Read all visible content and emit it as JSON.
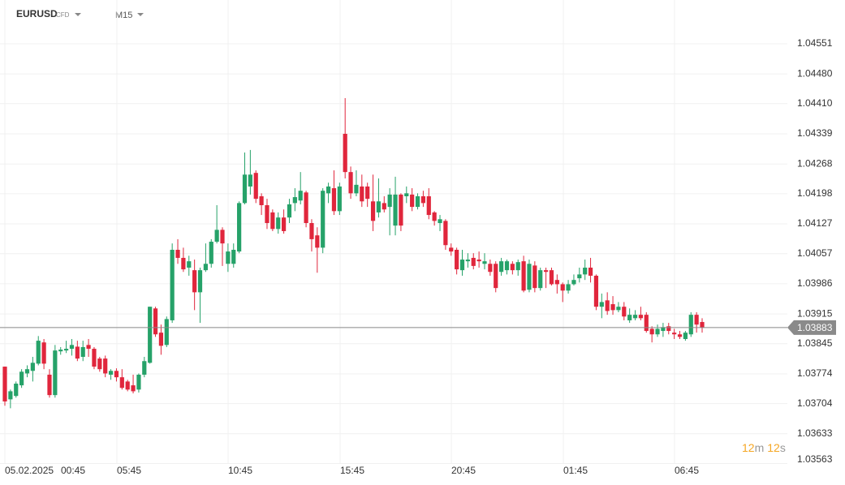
{
  "symbol": "EURUSD",
  "instrument": "CFD",
  "timeframe": "M15",
  "countdown": [
    {
      "number": "12",
      "unit": "m"
    },
    {
      "number": "12",
      "unit": "s"
    }
  ],
  "chart_data": {
    "type": "candlestick",
    "up_color": "#26a269",
    "down_color": "#e0263c",
    "last_price": 1.03883,
    "x_labels": [
      "05.02.2025",
      "00:45",
      "05:45",
      "10:45",
      "15:45",
      "20:45",
      "01:45",
      "06:45"
    ],
    "ylim": [
      1.03562,
      1.04654
    ],
    "yticks": [
      1.04551,
      {
        "value": 1.0448,
        "label": "1.04480"
      },
      {
        "value": 1.0441,
        "label": "1.04410"
      },
      1.04339,
      1.04268,
      1.04198,
      1.04127,
      1.04057,
      1.03986,
      1.03915,
      1.03845,
      1.03774,
      1.03704,
      1.03633,
      1.03563
    ],
    "grid": true,
    "candles": [
      [
        1.03791,
        1.03791,
        1.03699,
        1.03709
      ],
      [
        1.03714,
        1.03737,
        1.03693,
        1.03733
      ],
      [
        1.03722,
        1.03756,
        1.03718,
        1.03751
      ],
      [
        1.03747,
        1.03785,
        1.03741,
        1.03779
      ],
      [
        1.03775,
        1.03794,
        1.03766,
        1.03785
      ],
      [
        1.03781,
        1.03814,
        1.03756,
        1.038
      ],
      [
        1.03798,
        1.03863,
        1.03794,
        1.03852
      ],
      [
        1.03848,
        1.03856,
        1.03785,
        1.03798
      ],
      [
        1.03772,
        1.03785,
        1.03718,
        1.03724
      ],
      [
        1.03724,
        1.03842,
        1.03718,
        1.03829
      ],
      [
        1.03827,
        1.03837,
        1.03819,
        1.03831
      ],
      [
        1.03829,
        1.03852,
        1.03823,
        1.03833
      ],
      [
        1.03833,
        1.03856,
        1.03817,
        1.03842
      ],
      [
        1.03838,
        1.03852,
        1.03804,
        1.0381
      ],
      [
        1.03814,
        1.03852,
        1.03804,
        1.03837
      ],
      [
        1.03842,
        1.03856,
        1.03814,
        1.03833
      ],
      [
        1.03833,
        1.03837,
        1.03785,
        1.03791
      ],
      [
        1.0381,
        1.03814,
        1.03779,
        1.03785
      ],
      [
        1.0381,
        1.03817,
        1.03766,
        1.03775
      ],
      [
        1.03772,
        1.03785,
        1.0376,
        1.03781
      ],
      [
        1.03781,
        1.03787,
        1.03756,
        1.03766
      ],
      [
        1.03766,
        1.03785,
        1.03737,
        1.03741
      ],
      [
        1.03756,
        1.0376,
        1.03733,
        1.03737
      ],
      [
        1.03747,
        1.03772,
        1.03728,
        1.03733
      ],
      [
        1.03737,
        1.03775,
        1.0373,
        1.03772
      ],
      [
        1.03772,
        1.03814,
        1.03766,
        1.03804
      ],
      [
        1.038,
        1.03932,
        1.03798,
        1.03932
      ],
      [
        1.03928,
        1.03932,
        1.03861,
        1.03867
      ],
      [
        1.03871,
        1.0389,
        1.03819,
        1.0384
      ],
      [
        1.03842,
        1.03909,
        1.03837,
        1.03903
      ],
      [
        1.039,
        1.04081,
        1.03894,
        1.04066
      ],
      [
        1.04066,
        1.04091,
        1.04033,
        1.04047
      ],
      [
        1.04047,
        1.04071,
        1.04014,
        1.0402
      ],
      [
        1.04024,
        1.04052,
        1.04005,
        1.04039
      ],
      [
        1.04018,
        1.04043,
        1.03924,
        1.03966
      ],
      [
        1.03966,
        1.04024,
        1.03894,
        1.04018
      ],
      [
        1.04018,
        1.04081,
        1.04014,
        1.04033
      ],
      [
        1.04033,
        1.04091,
        1.04024,
        1.04085
      ],
      [
        1.04085,
        1.04171,
        1.04081,
        1.04113
      ],
      [
        1.04113,
        1.04119,
        1.04028,
        1.04081
      ],
      [
        1.04033,
        1.04081,
        1.04014,
        1.04062
      ],
      [
        1.04033,
        1.04081,
        1.04024,
        1.04066
      ],
      [
        1.04062,
        1.0418,
        1.04058,
        1.04176
      ],
      [
        1.04176,
        1.04295,
        1.04173,
        1.04243
      ],
      [
        1.04215,
        1.04301,
        1.04196,
        1.04243
      ],
      [
        1.04247,
        1.04253,
        1.04176,
        1.04186
      ],
      [
        1.04192,
        1.04199,
        1.04148,
        1.04171
      ],
      [
        1.04171,
        1.04186,
        1.04115,
        1.04129
      ],
      [
        1.04154,
        1.04161,
        1.0411,
        1.04115
      ],
      [
        1.04115,
        1.04154,
        1.04104,
        1.04142
      ],
      [
        1.04142,
        1.04161,
        1.04104,
        1.0411
      ],
      [
        1.04142,
        1.04186,
        1.04129,
        1.04173
      ],
      [
        1.04176,
        1.04211,
        1.04157,
        1.0419
      ],
      [
        1.04182,
        1.04249,
        1.04173,
        1.04205
      ],
      [
        1.04201,
        1.04205,
        1.04119,
        1.04129
      ],
      [
        1.04129,
        1.04138,
        1.04062,
        1.04091
      ],
      [
        1.041,
        1.04119,
        1.04012,
        1.04071
      ],
      [
        1.04071,
        1.04211,
        1.04058,
        1.04205
      ],
      [
        1.04199,
        1.04224,
        1.04176,
        1.04215
      ],
      [
        1.04211,
        1.04253,
        1.04148,
        1.04157
      ],
      [
        1.04157,
        1.04224,
        1.04148,
        1.04215
      ],
      [
        1.04339,
        1.04423,
        1.04234,
        1.04249
      ],
      [
        1.04249,
        1.04262,
        1.04186,
        1.04199
      ],
      [
        1.04199,
        1.04253,
        1.04192,
        1.04219
      ],
      [
        1.04215,
        1.04243,
        1.04167,
        1.0418
      ],
      [
        1.04215,
        1.04224,
        1.04167,
        1.04186
      ],
      [
        1.0418,
        1.04243,
        1.0411,
        1.04134
      ],
      [
        1.04154,
        1.04234,
        1.04142,
        1.0418
      ],
      [
        1.04176,
        1.04192,
        1.04154,
        1.04161
      ],
      [
        1.04167,
        1.04211,
        1.041,
        1.04196
      ],
      [
        1.04123,
        1.04238,
        1.041,
        1.04196
      ],
      [
        1.04196,
        1.04199,
        1.0411,
        1.04123
      ],
      [
        1.04192,
        1.04215,
        1.04176,
        1.04199
      ],
      [
        1.04196,
        1.04211,
        1.04157,
        1.04167
      ],
      [
        1.04167,
        1.04199,
        1.04161,
        1.04192
      ],
      [
        1.04192,
        1.04205,
        1.04167,
        1.04176
      ],
      [
        1.04192,
        1.04211,
        1.04138,
        1.04148
      ],
      [
        1.04154,
        1.04157,
        1.04123,
        1.04134
      ],
      [
        1.04129,
        1.04148,
        1.0411,
        1.04138
      ],
      [
        1.04134,
        1.04138,
        1.04066,
        1.04077
      ],
      [
        1.04071,
        1.04081,
        1.04052,
        1.04062
      ],
      [
        1.04066,
        1.04071,
        1.04008,
        1.0402
      ],
      [
        1.04018,
        1.04066,
        1.04005,
        1.04043
      ],
      [
        1.04039,
        1.04058,
        1.04024,
        1.04043
      ],
      [
        1.04047,
        1.04058,
        1.0402,
        1.04028
      ],
      [
        1.04043,
        1.04062,
        1.04024,
        1.04039
      ],
      [
        1.04033,
        1.04058,
        1.0402,
        1.04039
      ],
      [
        1.04033,
        1.04043,
        1.04005,
        1.04014
      ],
      [
        1.04033,
        1.04039,
        1.03966,
        1.03976
      ],
      [
        1.04014,
        1.04047,
        1.04005,
        1.04039
      ],
      [
        1.04018,
        1.04043,
        1.04008,
        1.04039
      ],
      [
        1.04033,
        1.04039,
        1.04008,
        1.04018
      ],
      [
        1.04018,
        1.04043,
        1.04005,
        1.04037
      ],
      [
        1.04039,
        1.04052,
        1.03966,
        1.0397
      ],
      [
        1.03972,
        1.04043,
        1.03966,
        1.04033
      ],
      [
        1.04029,
        1.04039,
        1.03966,
        1.03976
      ],
      [
        1.03976,
        1.04024,
        1.0397,
        1.04018
      ],
      [
        1.04018,
        1.04024,
        1.03976,
        1.04014
      ],
      [
        1.04018,
        1.04024,
        1.03982,
        1.03985
      ],
      [
        1.03995,
        1.04008,
        1.03963,
        1.03985
      ],
      [
        1.03985,
        1.03989,
        1.03943,
        1.0397
      ],
      [
        1.0397,
        1.03995,
        1.03963,
        1.03985
      ],
      [
        1.03985,
        1.04008,
        1.03982,
        1.03995
      ],
      [
        1.03999,
        1.04024,
        1.03989,
        1.04008
      ],
      [
        1.04008,
        1.04043,
        1.03995,
        1.04024
      ],
      [
        1.04024,
        1.04047,
        1.03989,
        1.04005
      ],
      [
        1.04005,
        1.04008,
        1.03924,
        1.03932
      ],
      [
        1.03932,
        1.03963,
        1.03905,
        1.03943
      ],
      [
        1.03947,
        1.03966,
        1.03913,
        1.03922
      ],
      [
        1.03938,
        1.03957,
        1.03913,
        1.03924
      ],
      [
        1.03924,
        1.03943,
        1.03919,
        1.03932
      ],
      [
        1.03932,
        1.03943,
        1.039,
        1.03909
      ],
      [
        1.039,
        1.03928,
        1.03894,
        1.03913
      ],
      [
        1.03905,
        1.03924,
        1.039,
        1.03913
      ],
      [
        1.03913,
        1.03932,
        1.039,
        1.03905
      ],
      [
        1.03913,
        1.03919,
        1.03871,
        1.03875
      ],
      [
        1.0388,
        1.03886,
        1.03848,
        1.03867
      ],
      [
        1.03867,
        1.0389,
        1.03861,
        1.0388
      ],
      [
        1.03875,
        1.03894,
        1.03861,
        1.03884
      ],
      [
        1.03886,
        1.03894,
        1.03867,
        1.03875
      ],
      [
        1.03871,
        1.0388,
        1.03856,
        1.03867
      ],
      [
        1.03867,
        1.03875,
        1.03856,
        1.03861
      ],
      [
        1.03856,
        1.03875,
        1.03852,
        1.03871
      ],
      [
        1.03867,
        1.03919,
        1.03861,
        1.03913
      ],
      [
        1.03913,
        1.03919,
        1.03871,
        1.0389
      ],
      [
        1.03896,
        1.03905,
        1.03871,
        1.03883
      ]
    ]
  }
}
